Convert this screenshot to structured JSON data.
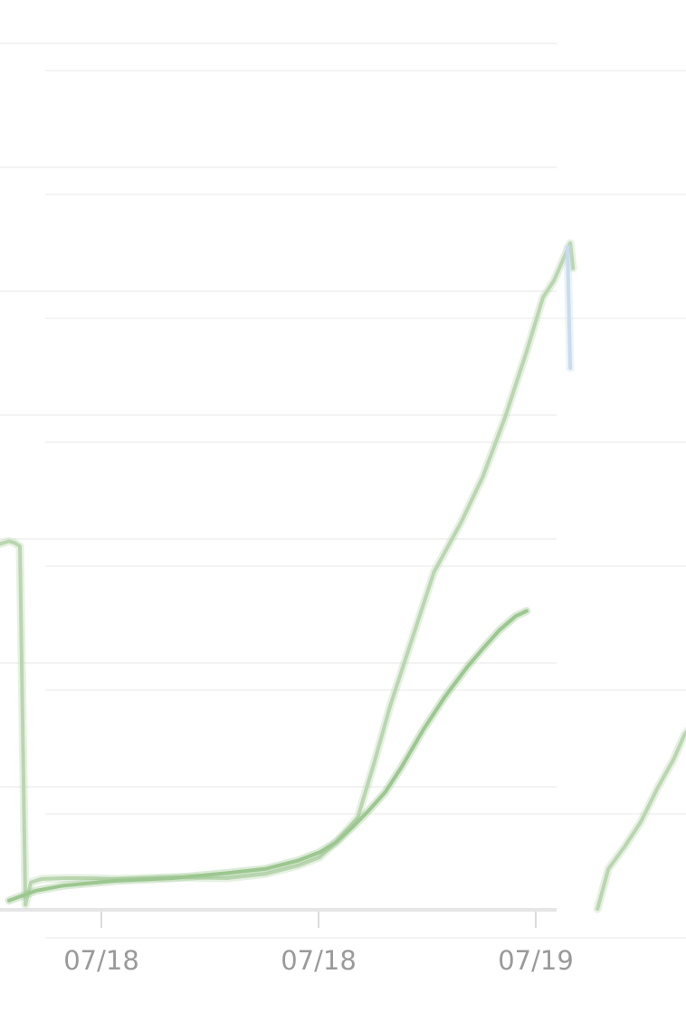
{
  "chart_data": [
    {
      "type": "line",
      "title": "",
      "xlabel": "",
      "ylabel": "",
      "grid": true,
      "legend": "none",
      "x_ticks": [
        "07/18",
        "07/18",
        "07/19"
      ],
      "x_range": [
        0,
        100
      ],
      "ylim": [
        0,
        100
      ],
      "series": [
        {
          "color": "#b9d6b0",
          "points": [
            [
              -2,
              43.8
            ],
            [
              0,
              44.2
            ],
            [
              1,
              44.0
            ],
            [
              2,
              43.6
            ],
            [
              3,
              0.5
            ],
            [
              4,
              3.2
            ],
            [
              6,
              3.6
            ],
            [
              10,
              3.7
            ],
            [
              15,
              3.7
            ],
            [
              20,
              3.6
            ],
            [
              30,
              3.8
            ],
            [
              40,
              3.7
            ],
            [
              47,
              4.2
            ],
            [
              53,
              5.2
            ],
            [
              57,
              6.2
            ],
            [
              60,
              8.0
            ],
            [
              64,
              11.0
            ],
            [
              67,
              17.5
            ],
            [
              70,
              24.5
            ],
            [
              74,
              32.5
            ],
            [
              78,
              40.5
            ],
            [
              83,
              46.5
            ],
            [
              87,
              52.0
            ],
            [
              91,
              59.0
            ],
            [
              95,
              67.0
            ],
            [
              98,
              73.5
            ],
            [
              100,
              75.5
            ],
            [
              102,
              78.5
            ],
            [
              103,
              80.0
            ],
            [
              103.5,
              77.0
            ]
          ]
        },
        {
          "color": "#9cc790",
          "points": [
            [
              0,
              1.0
            ],
            [
              5,
              2.2
            ],
            [
              10,
              2.8
            ],
            [
              20,
              3.4
            ],
            [
              30,
              3.7
            ],
            [
              40,
              4.3
            ],
            [
              47,
              4.8
            ],
            [
              53,
              5.8
            ],
            [
              57,
              6.8
            ],
            [
              60,
              8.0
            ],
            [
              63,
              9.8
            ],
            [
              66,
              11.8
            ],
            [
              69,
              14.0
            ],
            [
              72,
              17.0
            ],
            [
              76,
              21.5
            ],
            [
              80,
              25.5
            ],
            [
              84,
              29.0
            ],
            [
              87,
              31.3
            ],
            [
              90,
              33.5
            ],
            [
              93,
              35.2
            ],
            [
              95,
              35.8
            ]
          ]
        },
        {
          "color": "#c9dcee",
          "points": [
            [
              102.5,
              79.5
            ],
            [
              103,
              65.0
            ]
          ]
        },
        {
          "color": "#b9d6b0",
          "points": [
            [
              108,
              0
            ],
            [
              110,
              4.8
            ],
            [
              113,
              7.5
            ],
            [
              116,
              10.5
            ],
            [
              119,
              14.5
            ],
            [
              122,
              18.0
            ],
            [
              124,
              21.0
            ],
            [
              126,
              22.5
            ]
          ]
        }
      ]
    }
  ]
}
